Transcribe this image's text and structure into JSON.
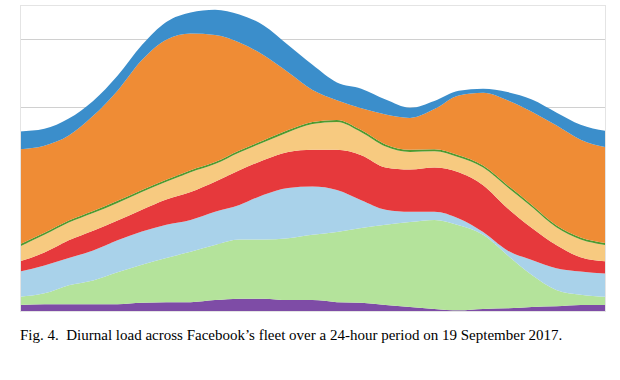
{
  "chart_data": {
    "type": "area",
    "caption": "Fig. 4.  Diurnal load across Facebook’s fleet over a 24-hour period on 19 September 2017.",
    "stacked": true,
    "grid": true,
    "tick_labels": false,
    "x": [
      0,
      1,
      2,
      3,
      4,
      5,
      6,
      7,
      8,
      9,
      10,
      11,
      12,
      13,
      14,
      15,
      16,
      17,
      18,
      19,
      20,
      21,
      22,
      23,
      24
    ],
    "xlim": [
      0,
      24
    ],
    "ylim": [
      0,
      4.5
    ],
    "yticks": [
      0,
      1,
      2,
      3,
      4
    ],
    "series": [
      {
        "color": "#7e4ca6",
        "values": [
          0.09,
          0.1,
          0.1,
          0.1,
          0.1,
          0.12,
          0.13,
          0.13,
          0.16,
          0.18,
          0.18,
          0.16,
          0.16,
          0.13,
          0.12,
          0.09,
          0.06,
          0.03,
          0.01,
          0.03,
          0.04,
          0.06,
          0.07,
          0.09,
          0.09
        ]
      },
      {
        "color": "#b4e39b",
        "values": [
          0.12,
          0.16,
          0.28,
          0.35,
          0.47,
          0.56,
          0.65,
          0.74,
          0.81,
          0.87,
          0.87,
          0.91,
          0.96,
          1.03,
          1.1,
          1.18,
          1.25,
          1.31,
          1.25,
          1.09,
          0.78,
          0.47,
          0.24,
          0.15,
          0.12
        ]
      },
      {
        "color": "#a9d2ea",
        "values": [
          0.37,
          0.41,
          0.4,
          0.44,
          0.47,
          0.49,
          0.49,
          0.47,
          0.49,
          0.51,
          0.66,
          0.74,
          0.71,
          0.62,
          0.41,
          0.22,
          0.15,
          0.12,
          0.1,
          0.04,
          0.07,
          0.22,
          0.32,
          0.34,
          0.34
        ]
      },
      {
        "color": "#e6393c",
        "values": [
          0.15,
          0.19,
          0.26,
          0.29,
          0.29,
          0.32,
          0.37,
          0.41,
          0.44,
          0.51,
          0.51,
          0.53,
          0.54,
          0.59,
          0.66,
          0.62,
          0.62,
          0.65,
          0.68,
          0.69,
          0.62,
          0.47,
          0.34,
          0.21,
          0.18
        ]
      },
      {
        "color": "#f7ca80",
        "values": [
          0.22,
          0.26,
          0.26,
          0.26,
          0.26,
          0.26,
          0.26,
          0.29,
          0.26,
          0.26,
          0.26,
          0.29,
          0.38,
          0.41,
          0.34,
          0.31,
          0.26,
          0.24,
          0.22,
          0.26,
          0.31,
          0.31,
          0.26,
          0.26,
          0.24
        ]
      },
      {
        "color": "#4f9a2e",
        "values": [
          0.03,
          0.03,
          0.03,
          0.03,
          0.03,
          0.03,
          0.03,
          0.03,
          0.03,
          0.03,
          0.03,
          0.03,
          0.03,
          0.03,
          0.03,
          0.03,
          0.03,
          0.03,
          0.03,
          0.03,
          0.03,
          0.03,
          0.03,
          0.03,
          0.03
        ]
      },
      {
        "color": "#ef8c35",
        "values": [
          1.4,
          1.28,
          1.25,
          1.4,
          1.62,
          1.91,
          2.06,
          2.01,
          1.87,
          1.59,
          1.25,
          0.85,
          0.47,
          0.29,
          0.32,
          0.44,
          0.47,
          0.59,
          0.88,
          1.07,
          1.25,
          1.37,
          1.47,
          1.44,
          1.41
        ]
      },
      {
        "color": "#3b8ecb",
        "values": [
          0.26,
          0.25,
          0.25,
          0.22,
          0.22,
          0.22,
          0.26,
          0.31,
          0.37,
          0.41,
          0.44,
          0.4,
          0.37,
          0.26,
          0.29,
          0.22,
          0.15,
          0.12,
          0.07,
          0.06,
          0.12,
          0.18,
          0.19,
          0.22,
          0.24
        ]
      }
    ]
  }
}
